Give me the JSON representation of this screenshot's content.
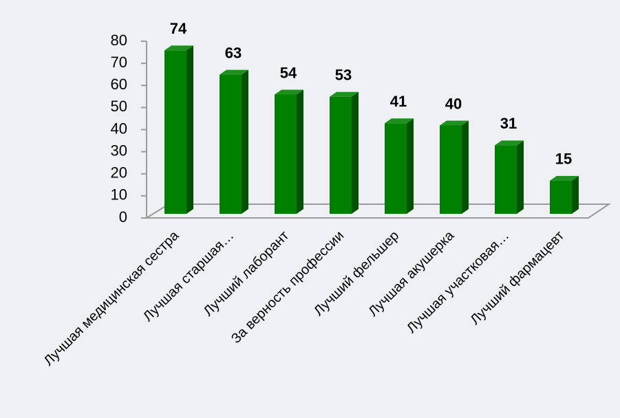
{
  "chart_data": {
    "type": "bar",
    "categories": [
      "Лучшая медицинская сестра",
      "Лучшая старшая…",
      "Лучший лаборант",
      "За верность профессии",
      "Лучший фельшер",
      "Лучшая акушерка",
      "Лучшая участковая…",
      "Лучший фармацевт"
    ],
    "values": [
      74,
      63,
      54,
      53,
      41,
      40,
      31,
      15
    ],
    "color": "#008000",
    "ylim": [
      0,
      80
    ],
    "yticks": [
      0,
      10,
      20,
      30,
      40,
      50,
      60,
      70,
      80
    ]
  }
}
